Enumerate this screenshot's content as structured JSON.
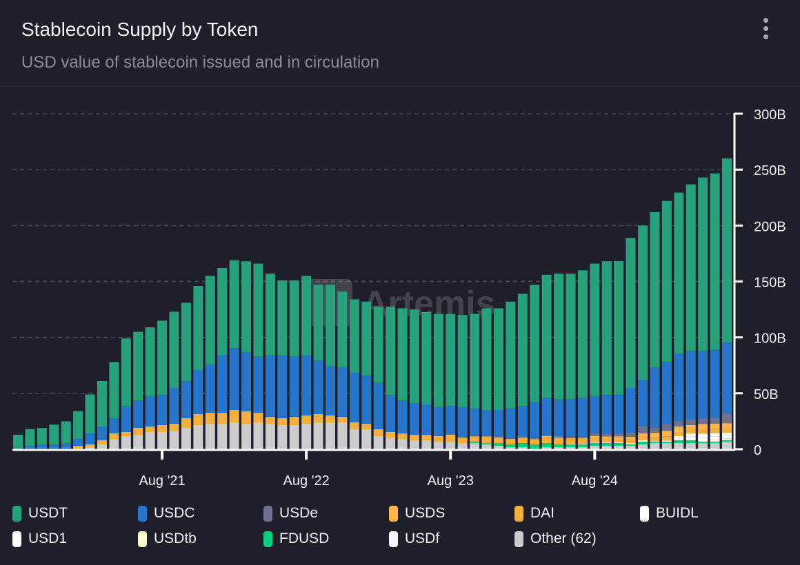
{
  "header": {
    "title": "Stablecoin Supply by Token",
    "subtitle": "USD value of stablecoin issued and in circulation",
    "menu_icon": "more-vertical-icon"
  },
  "watermark": "Artemis",
  "chart_data": {
    "type": "bar",
    "stacked": true,
    "title": "Stablecoin Supply by Token",
    "subtitle": "USD value of stablecoin issued and in circulation",
    "ylim": [
      0,
      300
    ],
    "y_unit": "B",
    "y_ticks": [
      "0",
      "50B",
      "100B",
      "150B",
      "200B",
      "250B",
      "300B"
    ],
    "y_tick_values": [
      0,
      50,
      100,
      150,
      200,
      250,
      300
    ],
    "x_ticks": [
      {
        "label": "Aug '21",
        "category": "Aug '21"
      },
      {
        "label": "Aug '22",
        "category": "Aug '22"
      },
      {
        "label": "Aug '23",
        "category": "Aug '23"
      },
      {
        "label": "Aug '24",
        "category": "Aug '24"
      }
    ],
    "grid": true,
    "legend_position": "bottom",
    "categories": [
      "Aug '20",
      "Sep '20",
      "Oct '20",
      "Nov '20",
      "Dec '20",
      "Jan '21",
      "Feb '21",
      "Mar '21",
      "Apr '21",
      "May '21",
      "Jun '21",
      "Jul '21",
      "Aug '21",
      "Sep '21",
      "Oct '21",
      "Nov '21",
      "Dec '21",
      "Jan '22",
      "Feb '22",
      "Mar '22",
      "Apr '22",
      "May '22",
      "Jun '22",
      "Jul '22",
      "Aug '22",
      "Sep '22",
      "Oct '22",
      "Nov '22",
      "Dec '22",
      "Jan '23",
      "Feb '23",
      "Mar '23",
      "Apr '23",
      "May '23",
      "Jun '23",
      "Jul '23",
      "Aug '23",
      "Sep '23",
      "Oct '23",
      "Nov '23",
      "Dec '23",
      "Jan '24",
      "Feb '24",
      "Mar '24",
      "Apr '24",
      "May '24",
      "Jun '24",
      "Jul '24",
      "Aug '24",
      "Sep '24",
      "Oct '24",
      "Nov '24",
      "Dec '24",
      "Jan '25",
      "Feb '25",
      "Mar '25",
      "Apr '25",
      "May '25",
      "Jun '25",
      "Jul '25"
    ],
    "series": [
      {
        "name": "Other (62)",
        "color": "#cccccc",
        "values": [
          0,
          0,
          0,
          0,
          0,
          0,
          1.8,
          4.3,
          9.2,
          11.7,
          12.9,
          15.4,
          15.4,
          16.6,
          19.1,
          21.6,
          22.8,
          22.8,
          24,
          22.8,
          24,
          22.8,
          21.6,
          21.6,
          22.8,
          24,
          24,
          24,
          17.9,
          17.9,
          11.7,
          10.5,
          9.2,
          8,
          8,
          6.8,
          6.8,
          5.5,
          5.5,
          4.3,
          3.1,
          1.8,
          1.8,
          0.5,
          1.8,
          1.8,
          1.8,
          1.8,
          3.1,
          3.1,
          3.1,
          3.1,
          4.3,
          5.5,
          5.5,
          5.5,
          5.5,
          5.5,
          5.5,
          6.8
        ]
      },
      {
        "name": "FDUSD",
        "color": "#00d17f",
        "values": [
          0,
          0,
          0,
          0,
          0,
          0,
          0,
          0,
          0,
          0,
          0,
          0,
          0,
          0,
          0,
          0,
          0,
          0,
          0,
          0,
          0,
          0,
          0,
          0,
          0,
          0,
          0,
          0,
          0,
          0,
          0,
          0,
          0,
          0,
          0,
          0,
          0,
          0,
          1.2,
          1,
          2.5,
          2.5,
          3.7,
          3.7,
          3.7,
          2.5,
          2.5,
          2.5,
          2.5,
          2.5,
          2.5,
          1.2,
          2.5,
          1.2,
          1.2,
          2.5,
          2.5,
          1.2,
          1.2,
          1.2
        ]
      },
      {
        "name": "USDf",
        "color": "#f4f4f4",
        "values": [
          0,
          0,
          0,
          0,
          0,
          0,
          0,
          0,
          0,
          0,
          0,
          0,
          0,
          0,
          0,
          0,
          0,
          0,
          0,
          0,
          0,
          0,
          0,
          0,
          0,
          0,
          0,
          0,
          0,
          0,
          0,
          0,
          0,
          0,
          0,
          0,
          0,
          0,
          0,
          0,
          0,
          0,
          0,
          0,
          0,
          0,
          0,
          0,
          0,
          0,
          0,
          0,
          0,
          0,
          0,
          0,
          0,
          1,
          1,
          0.5
        ]
      },
      {
        "name": "USDtb",
        "color": "#fffbd0",
        "values": [
          0,
          0,
          0,
          0,
          0,
          0,
          0,
          0,
          0,
          0,
          0,
          0,
          0,
          0,
          0,
          0,
          0,
          0,
          0,
          0,
          0,
          0,
          0,
          0,
          0,
          0,
          0,
          0,
          0,
          0,
          0,
          0,
          0,
          0,
          0,
          0,
          0,
          0,
          0,
          0,
          0,
          0,
          0,
          0,
          0,
          0,
          0,
          0,
          0,
          0,
          0,
          0,
          0,
          0,
          0,
          0,
          0,
          0,
          0.5,
          1.2
        ]
      },
      {
        "name": "USD1",
        "color": "#ffffff",
        "values": [
          0,
          0,
          0,
          0,
          0,
          0,
          0,
          0,
          0,
          0,
          0,
          0,
          0,
          0,
          0,
          0,
          0,
          0,
          0,
          0,
          0,
          0,
          0,
          0,
          0,
          0,
          0,
          0,
          0,
          0,
          0,
          0,
          0,
          0,
          0,
          0,
          0,
          0,
          0,
          0,
          0,
          0,
          0,
          0,
          0,
          0,
          0,
          0,
          0,
          0,
          0,
          0,
          0,
          0,
          0,
          1.2,
          3.3,
          3.3,
          3.3,
          2.5
        ]
      },
      {
        "name": "BUIDL",
        "color": "#ffffff",
        "values": [
          0,
          0,
          0,
          0,
          0,
          0,
          0,
          0,
          0,
          0,
          0,
          0,
          0,
          0,
          0,
          0,
          0,
          0,
          0,
          0,
          0,
          0,
          0,
          0,
          0,
          0,
          0,
          0,
          0,
          0,
          0,
          0,
          0,
          0,
          0,
          0,
          0,
          0,
          0,
          0,
          0,
          0,
          0,
          0,
          0,
          0,
          0.5,
          0.5,
          0.5,
          0.5,
          0.6,
          1.2,
          1.2,
          0.6,
          1.2,
          2.5,
          2.9,
          2.9,
          2.9,
          2.5
        ]
      },
      {
        "name": "DAI",
        "color": "#f4b03f",
        "values": [
          0,
          0,
          0,
          0,
          0,
          3.1,
          2.5,
          3.7,
          5,
          3.7,
          6.2,
          4.9,
          6.2,
          6.2,
          8.6,
          9.8,
          9.8,
          9.8,
          11.1,
          11.1,
          8.6,
          6.2,
          6.1,
          7.4,
          7.4,
          7.4,
          6.2,
          5,
          6.1,
          4.9,
          6.2,
          4.9,
          4.9,
          4.9,
          4.9,
          4.9,
          6.2,
          4.9,
          4.9,
          6.2,
          4.9,
          4.9,
          4.9,
          4.9,
          5.6,
          5.6,
          4.4,
          4.4,
          5,
          4.4,
          4.4,
          4.4,
          3.7,
          3.7,
          3.7,
          3.7,
          3.7,
          3.7,
          3.7,
          3.7
        ]
      },
      {
        "name": "USDS",
        "color": "#ffb54d",
        "values": [
          0,
          0,
          0,
          0,
          0,
          0,
          0,
          0,
          0,
          0,
          0,
          0,
          0,
          0,
          0,
          0,
          0,
          0,
          0,
          0,
          0,
          0,
          0,
          0,
          0,
          0,
          0,
          0,
          0,
          0,
          0,
          0,
          0,
          0,
          0,
          0,
          0,
          0,
          0,
          0,
          0,
          0,
          0,
          0,
          0.6,
          0.6,
          0.6,
          0.6,
          0.8,
          1,
          1,
          1.2,
          2.5,
          3.7,
          4.9,
          4.9,
          3.7,
          4.9,
          4.9,
          4.9
        ]
      },
      {
        "name": "USDe",
        "color": "#6f7190",
        "values": [
          0,
          0,
          0,
          0,
          0,
          0,
          0,
          0,
          0,
          0,
          0,
          0,
          0,
          0,
          0,
          0,
          0,
          0,
          0,
          0,
          0,
          0,
          0,
          0,
          0,
          0,
          0,
          0,
          0,
          0,
          0,
          0,
          0,
          0,
          0,
          0.5,
          0.6,
          0.6,
          0.6,
          0.6,
          0.6,
          0.6,
          0.6,
          0.8,
          1.2,
          1.2,
          1.2,
          1.8,
          2.5,
          2.5,
          2.5,
          3.7,
          6.2,
          4.9,
          6.2,
          4.9,
          4.9,
          4.9,
          4.9,
          8.6
        ]
      },
      {
        "name": "USDC",
        "color": "#2775ca",
        "values": [
          0,
          3.1,
          4.3,
          4.3,
          5.5,
          6.1,
          9.9,
          12.3,
          13.5,
          23.4,
          24.6,
          27.1,
          27.1,
          32,
          33.2,
          39.4,
          43.1,
          51.8,
          55.4,
          53,
          50.6,
          55.4,
          56.7,
          54.2,
          54.2,
          48.1,
          44.3,
          44.3,
          44.4,
          43.2,
          41.9,
          33.3,
          29.6,
          28.4,
          27.1,
          25.4,
          25.2,
          26.6,
          24.2,
          23,
          24,
          26.6,
          27.8,
          32.6,
          33.3,
          33.3,
          34,
          34.6,
          33,
          34.7,
          34.7,
          40,
          41.8,
          53.7,
          55.5,
          60.4,
          61.6,
          60.7,
          61.4,
          63.6
        ]
      },
      {
        "name": "USDT",
        "color": "#26a17b",
        "values": [
          13,
          14.9,
          14.7,
          17.7,
          19.5,
          24.8,
          34.8,
          40.7,
          50.3,
          60.2,
          61.3,
          61.6,
          66.3,
          68.2,
          70.1,
          75.2,
          79.3,
          77.6,
          78.5,
          81.1,
          82.8,
          72.6,
          66.6,
          67.8,
          70.6,
          67.5,
          72.5,
          67.7,
          65.6,
          66,
          67.7,
          78.8,
          82.3,
          83.7,
          82.6,
          83.4,
          82.2,
          82.4,
          84.6,
          90.9,
          90.9,
          95.6,
          100.2,
          104.5,
          109.8,
          112,
          112,
          113.8,
          118.6,
          119.3,
          119.3,
          134.2,
          137.8,
          138.7,
          143.8,
          143.8,
          148.7,
          154.9,
          157.3,
          164.5
        ]
      }
    ]
  },
  "legend": [
    {
      "label": "USDT",
      "color": "#26a17b"
    },
    {
      "label": "USDC",
      "color": "#2775ca"
    },
    {
      "label": "USDe",
      "color": "#6f7190"
    },
    {
      "label": "USDS",
      "color": "#ffb54d"
    },
    {
      "label": "DAI",
      "color": "#f4b03f"
    },
    {
      "label": "BUIDL",
      "color": "#ffffff"
    },
    {
      "label": "USD1",
      "color": "#ffffff"
    },
    {
      "label": "USDtb",
      "color": "#fffbd0"
    },
    {
      "label": "FDUSD",
      "color": "#00d17f"
    },
    {
      "label": "USDf",
      "color": "#f4f4f4"
    },
    {
      "label": "Other (62)",
      "color": "#cccccc"
    }
  ]
}
